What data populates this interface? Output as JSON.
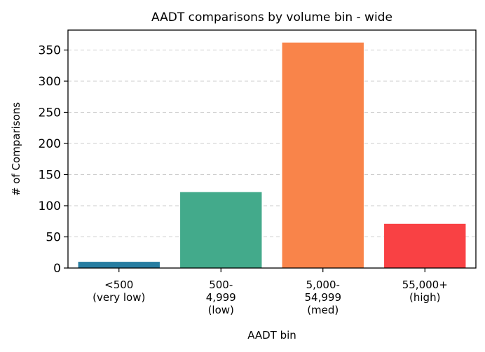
{
  "chart_data": {
    "type": "bar",
    "title": "AADT comparisons by volume bin - wide",
    "xlabel": "AADT bin",
    "ylabel": "# of Comparisons",
    "categories": [
      [
        "<500",
        "(very low)"
      ],
      [
        "500-",
        "4,999",
        "(low)"
      ],
      [
        "5,000-",
        "54,999",
        "(med)"
      ],
      [
        "55,000+",
        "(high)"
      ]
    ],
    "values": [
      10,
      122,
      362,
      71
    ],
    "colors": [
      "#277da1",
      "#43aa8b",
      "#f9844a",
      "#f94144"
    ],
    "ylim": [
      0,
      382
    ],
    "yticks": [
      0,
      50,
      100,
      150,
      200,
      250,
      300,
      350
    ],
    "grid": true,
    "legend": "none"
  }
}
